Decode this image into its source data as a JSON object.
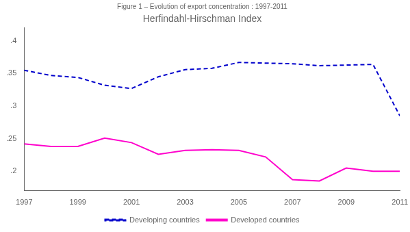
{
  "chart_data": {
    "type": "line",
    "title": "Herfindahl-Hirschman Index",
    "subtitle": "Figure 1 – Evolution of export concentration : 1997-2011",
    "x": [
      1997,
      1998,
      1999,
      2000,
      2001,
      2002,
      2003,
      2004,
      2005,
      2006,
      2007,
      2008,
      2009,
      2010,
      2011
    ],
    "series": [
      {
        "name": "Developing countries",
        "color": "#0000cc",
        "line_style": "dashed",
        "marker": "none",
        "values": [
          0.355,
          0.347,
          0.344,
          0.332,
          0.327,
          0.345,
          0.356,
          0.358,
          0.367,
          0.366,
          0.365,
          0.362,
          0.363,
          0.364,
          0.285
        ]
      },
      {
        "name": "Developed countries",
        "color": "#ff00cc",
        "line_style": "solid",
        "marker": "none",
        "values": [
          0.242,
          0.238,
          0.238,
          0.251,
          0.244,
          0.226,
          0.232,
          0.233,
          0.232,
          0.222,
          0.187,
          0.185,
          0.205,
          0.2,
          0.2
        ]
      }
    ],
    "xlim": [
      1997,
      2011
    ],
    "xticks": [
      1997,
      1999,
      2001,
      2003,
      2005,
      2007,
      2009,
      2011
    ],
    "ylim": [
      0.17,
      0.42
    ],
    "yticks": [
      {
        "value": 0.2,
        "label": ".2"
      },
      {
        "value": 0.25,
        "label": ".25"
      },
      {
        "value": 0.3,
        "label": ".3"
      },
      {
        "value": 0.35,
        "label": ".35"
      },
      {
        "value": 0.4,
        "label": ".4"
      }
    ],
    "grid": false,
    "legend": "bottom"
  }
}
